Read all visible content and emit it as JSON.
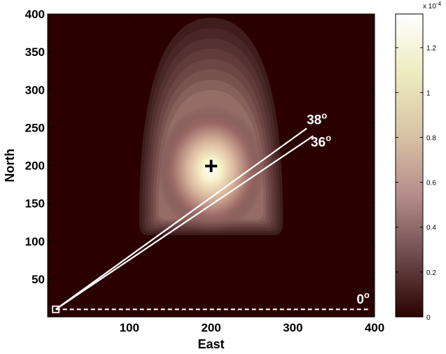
{
  "chart_data": {
    "type": "heatmap",
    "title": "",
    "xlabel": "East",
    "ylabel": "North",
    "xlim": [
      0,
      400
    ],
    "ylim": [
      0,
      400
    ],
    "xticks": [
      "100",
      "200",
      "300",
      "400"
    ],
    "yticks": [
      "50",
      "100",
      "150",
      "200",
      "250",
      "300",
      "350",
      "400"
    ],
    "grid": false,
    "colormap": "pink",
    "colorbar": {
      "ticks": [
        "0",
        "0.2",
        "0.4",
        "0.6",
        "0.8",
        "1",
        "1.2"
      ],
      "tick_values": [
        0,
        0.2,
        0.4,
        0.6,
        0.8,
        1.0,
        1.2
      ],
      "max": 1.35,
      "exponent_label": "x 10",
      "exponent": "-4",
      "colors": [
        "#2b0000",
        "#6e4a4a",
        "#b58b8b",
        "#d8c3a4",
        "#ecebbf",
        "#ffffff"
      ]
    },
    "distribution": {
      "center_east": 200,
      "center_north": 200,
      "peak_value": 1.35,
      "extent_east": [
        112,
        288
      ],
      "extent_north": [
        108,
        395
      ],
      "center_marker": "+"
    },
    "source": {
      "east": 10,
      "north": 10,
      "marker": "square"
    },
    "rays": [
      {
        "label": "38",
        "degree_symbol": "o",
        "from": [
          10,
          10
        ],
        "to": [
          317,
          249
        ],
        "style": "solid",
        "color": "#ffffff"
      },
      {
        "label": "36",
        "degree_symbol": "o",
        "from": [
          10,
          10
        ],
        "to": [
          325,
          239
        ],
        "style": "solid",
        "color": "#ffffff"
      },
      {
        "label": "0",
        "degree_symbol": "o",
        "from": [
          10,
          10
        ],
        "to": [
          395,
          10
        ],
        "style": "dashed",
        "color": "#ffffff"
      }
    ]
  }
}
